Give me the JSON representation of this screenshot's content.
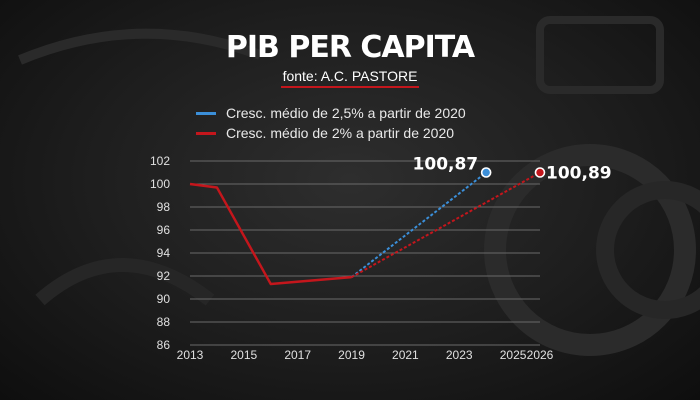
{
  "header": {
    "title": "PIB PER CAPITA",
    "subtitle": "fonte: A.C. PASTORE"
  },
  "colors": {
    "blue": "#3b8fd9",
    "red": "#c4161c",
    "grid": "#6a6a6a",
    "text": "#ffffff"
  },
  "chart_data": {
    "type": "line",
    "x_ticks": [
      "2013",
      "2015",
      "2017",
      "2019",
      "2021",
      "2023",
      "2025",
      "2026"
    ],
    "y_ticks": [
      "86",
      "88",
      "90",
      "92",
      "94",
      "96",
      "98",
      "100",
      "102"
    ],
    "xlim": [
      2013,
      2026
    ],
    "ylim": [
      86,
      102
    ],
    "grid": true,
    "legend_position": "top-left",
    "historical": {
      "x": [
        2013,
        2014,
        2016,
        2019
      ],
      "y": [
        100,
        99.7,
        91.3,
        91.9
      ]
    },
    "series": [
      {
        "name": "Cresc. médio de 2,5% a partir de 2020",
        "color": "#3b8fd9",
        "style": "dashed",
        "x": [
          2019,
          2024
        ],
        "y": [
          91.9,
          101
        ],
        "end_label": "100,87"
      },
      {
        "name": "Cresc. médio de 2% a partir de 2020",
        "color": "#c4161c",
        "style": "dashed",
        "x": [
          2019,
          2026
        ],
        "y": [
          91.9,
          101
        ],
        "end_label": "100,89"
      }
    ]
  }
}
